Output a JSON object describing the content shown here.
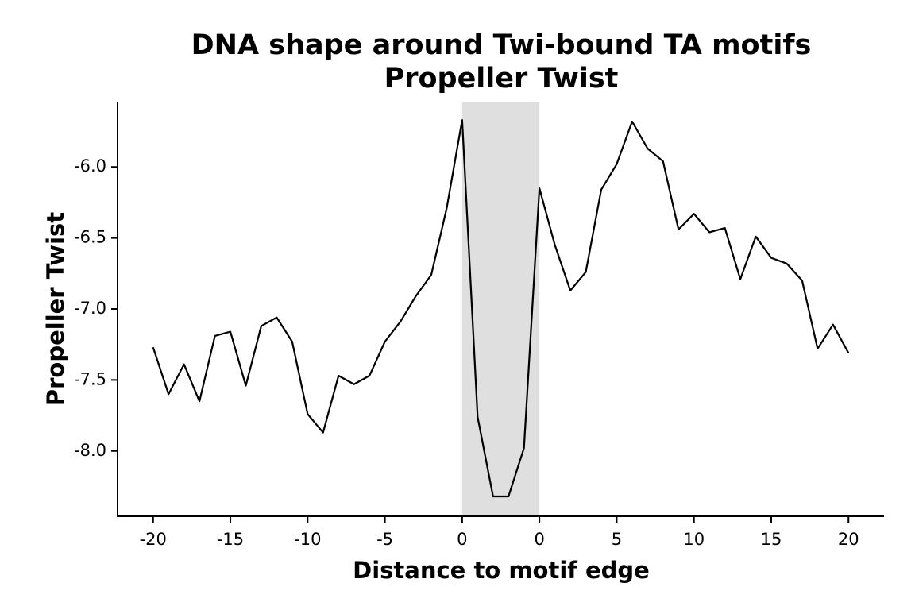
{
  "chart_data": {
    "type": "line",
    "title_lines": [
      "DNA shape around Twi-bound TA motifs",
      "Propeller Twist"
    ],
    "xlabel": "Distance to motif edge",
    "ylabel": "Propeller Twist",
    "x": [
      0,
      1,
      2,
      3,
      4,
      5,
      6,
      7,
      8,
      9,
      10,
      11,
      12,
      13,
      14,
      15,
      16,
      17,
      18,
      19,
      20,
      21,
      22,
      23,
      24,
      25,
      26,
      27,
      28,
      29,
      30,
      31,
      32,
      33,
      34,
      35,
      36,
      37,
      38,
      39,
      40,
      41,
      42,
      43,
      44,
      45
    ],
    "series": [
      {
        "name": "Propeller Twist",
        "color": "#000000",
        "values": [
          -7.27,
          -7.6,
          -7.39,
          -7.65,
          -7.19,
          -7.16,
          -7.54,
          -7.12,
          -7.06,
          -7.23,
          -7.74,
          -7.87,
          -7.47,
          -7.53,
          -7.47,
          -7.23,
          -7.09,
          -6.91,
          -6.76,
          -6.29,
          -5.67,
          -7.76,
          -8.32,
          -8.32,
          -7.98,
          -6.15,
          -6.55,
          -6.87,
          -6.74,
          -6.16,
          -5.98,
          -5.68,
          -5.87,
          -5.96,
          -6.44,
          -6.33,
          -6.46,
          -6.43,
          -6.79,
          -6.49,
          -6.64,
          -6.68,
          -6.8,
          -7.28,
          -7.11,
          -7.31
        ]
      }
    ],
    "shade": [
      20,
      25
    ],
    "shade_color": "#dfdfdf",
    "xlim": [
      -2.3,
      47.3
    ],
    "xticks": [
      {
        "value": 0,
        "label": "-20"
      },
      {
        "value": 5,
        "label": "-15"
      },
      {
        "value": 10,
        "label": "-10"
      },
      {
        "value": 15,
        "label": "-5"
      },
      {
        "value": 20,
        "label": "0"
      },
      {
        "value": 25,
        "label": "0"
      },
      {
        "value": 30,
        "label": "5"
      },
      {
        "value": 35,
        "label": "10"
      },
      {
        "value": 40,
        "label": "15"
      },
      {
        "value": 45,
        "label": "20"
      }
    ],
    "ylim": [
      -8.46,
      -5.54
    ],
    "yticks": [
      {
        "value": -8,
        "label": "-8.0"
      },
      {
        "value": -7.5,
        "label": "-7.5"
      },
      {
        "value": -7,
        "label": "-7.0"
      },
      {
        "value": -6.5,
        "label": "-6.5"
      },
      {
        "value": -6,
        "label": "-6.0"
      }
    ]
  }
}
